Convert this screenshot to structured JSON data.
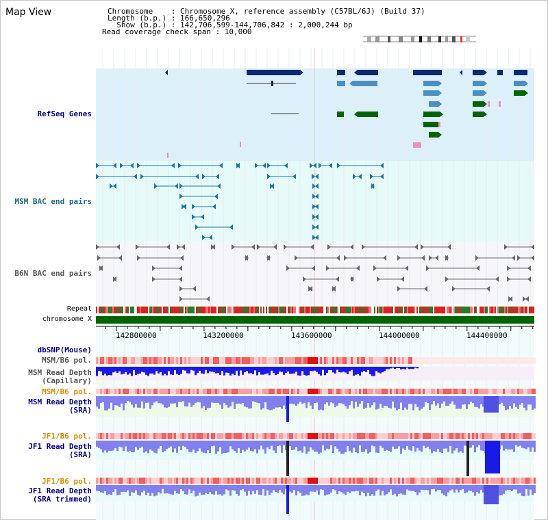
{
  "header": {
    "title": "Map View",
    "info_lines": [
      "Chromosome    : Chromosome X, reference assembly (C57BL/6J) (Build 37)",
      "Length (b.p.) : 166,650,296",
      "  Show (b.p.) : 142,706,599-144,706,842 : 2,000,244 bp",
      "Read coverage check span : 10,000"
    ]
  },
  "tracks": {
    "refseq": {
      "label": "RefSeq Genes"
    },
    "msm_bac": {
      "label": "MSM BAC end pairs"
    },
    "b6n_bac": {
      "label": "B6N BAC end pairs"
    },
    "repeat": {
      "label": "Repeat"
    },
    "chromosome": {
      "label": "chromosome X"
    },
    "dbsnp": {
      "label": "dbSNP(Mouse)"
    },
    "msm_b6_pol_1": {
      "label": "MSM/B6 pol."
    },
    "msm_depth_cap": {
      "label_line1": "MSM Read Depth",
      "label_line2": "(Capillary)"
    },
    "msm_b6_pol_2": {
      "label": "MSM/B6 pol."
    },
    "msm_depth_sra": {
      "label_line1": "MSM Read Depth",
      "label_line2": "(SRA)"
    },
    "jf1_b6_pol_1": {
      "label": "JF1/B6 pol."
    },
    "jf1_depth_sra": {
      "label_line1": "JF1 Read Depth",
      "label_line2": "(SRA)"
    },
    "jf1_b6_pol_2": {
      "label": "JF1/B6 pol."
    },
    "jf1_depth_trimmed": {
      "label_line1": "JF1 Read Depth",
      "label_line2": "(SRA trimmed)"
    }
  },
  "axis": {
    "ticks": [
      {
        "value": 142800000,
        "label": "142800000"
      },
      {
        "value": 143200000,
        "label": "143200000"
      },
      {
        "value": 143600000,
        "label": "143600000"
      },
      {
        "value": 144000000,
        "label": "144000000"
      },
      {
        "value": 144400000,
        "label": "144400000"
      }
    ],
    "start": 142706599,
    "end": 144706842
  },
  "colors": {
    "refseq_bg": "#dcf0fa",
    "msm_bg": "#e6fafa",
    "b6n_bg": "#f5f5fa",
    "gene_dark": "#0a2a6e",
    "gene_mid": "#4a90c0",
    "gene_green": "#006400",
    "gene_pink": "#f090c0",
    "bac_msm": "#1a7a9a",
    "bac_b6n": "#666666",
    "chromosome": "#006400",
    "label_blue": "#00008b",
    "label_teal": "#1a6a8a",
    "label_gray": "#555555",
    "label_orange": "#e08a00",
    "depth_cap": "#1a1ae6",
    "depth_sra": "#8080ee",
    "depth_sra_bg": "#eefae8",
    "depth_cap_bg": "#f8eefa"
  }
}
